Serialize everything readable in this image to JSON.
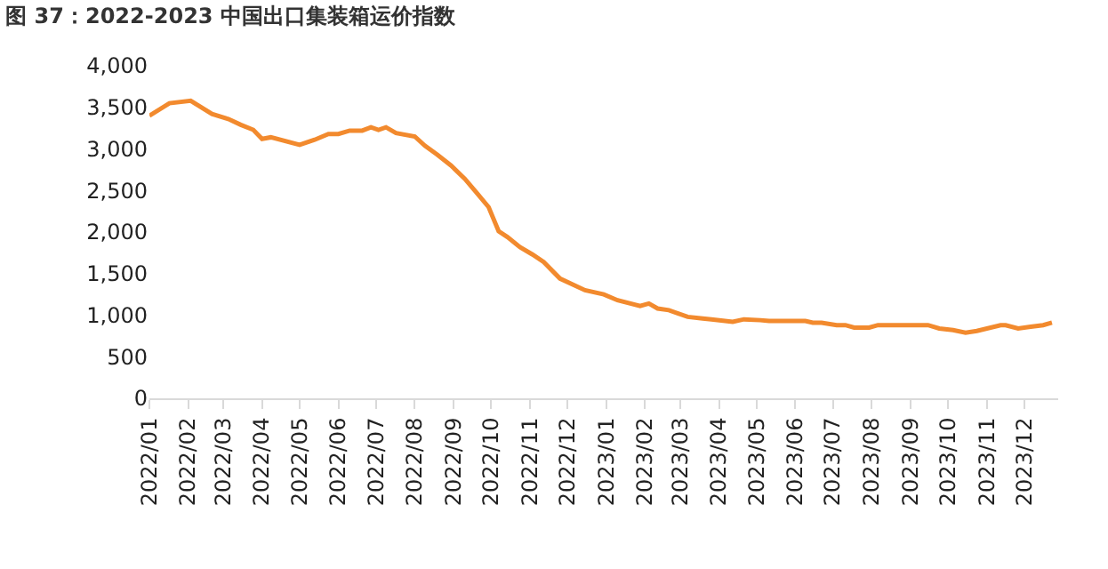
{
  "chart_data": {
    "type": "line",
    "title": "图 37：2022-2023 中国出口集装箱运价指数",
    "x": [
      "2022-01-01",
      "2022-01-17",
      "2022-02-03",
      "2022-02-20",
      "2022-03-05",
      "2022-03-15",
      "2022-03-25",
      "2022-04-01",
      "2022-04-08",
      "2022-05-01",
      "2022-05-13",
      "2022-05-24",
      "2022-06-01",
      "2022-06-10",
      "2022-06-20",
      "2022-06-27",
      "2022-07-03",
      "2022-07-09",
      "2022-07-17",
      "2022-08-01",
      "2022-08-09",
      "2022-08-19",
      "2022-08-30",
      "2022-09-10",
      "2022-09-19",
      "2022-09-29",
      "2022-10-07",
      "2022-10-14",
      "2022-10-24",
      "2022-11-03",
      "2022-11-12",
      "2022-11-25",
      "2022-12-15",
      "2022-12-30",
      "2023-01-10",
      "2023-01-28",
      "2023-02-04",
      "2023-02-11",
      "2023-02-20",
      "2023-03-07",
      "2023-03-19",
      "2023-03-26",
      "2023-04-12",
      "2023-04-21",
      "2023-05-04",
      "2023-05-11",
      "2023-06-09",
      "2023-06-15",
      "2023-06-22",
      "2023-07-04",
      "2023-07-11",
      "2023-07-18",
      "2023-07-30",
      "2023-08-06",
      "2023-09-15",
      "2023-09-24",
      "2023-10-05",
      "2023-10-15",
      "2023-10-24",
      "2023-11-12",
      "2023-11-16",
      "2023-11-26",
      "2023-12-06",
      "2023-12-16",
      "2023-12-23"
    ],
    "series": [
      {
        "color": "#f28a2e",
        "values": [
          3400,
          3550,
          3580,
          3420,
          3360,
          3290,
          3230,
          3120,
          3140,
          3050,
          3110,
          3180,
          3180,
          3220,
          3220,
          3260,
          3230,
          3260,
          3190,
          3150,
          3040,
          2930,
          2800,
          2640,
          2480,
          2300,
          2010,
          1940,
          1820,
          1730,
          1640,
          1440,
          1300,
          1250,
          1180,
          1110,
          1140,
          1080,
          1060,
          980,
          960,
          950,
          920,
          950,
          940,
          930,
          930,
          910,
          910,
          880,
          880,
          850,
          850,
          880,
          880,
          840,
          820,
          790,
          810,
          880,
          880,
          840,
          860,
          880,
          910
        ]
      }
    ],
    "xlim": [
      "2022-01-01",
      "2023-12-28"
    ],
    "xticks": [
      {
        "value": "2022-01-01",
        "label": "2022/01"
      },
      {
        "value": "2022-02-01",
        "label": "2022/02"
      },
      {
        "value": "2022-03-01",
        "label": "2022/03"
      },
      {
        "value": "2022-04-01",
        "label": "2022/04"
      },
      {
        "value": "2022-05-01",
        "label": "2022/05"
      },
      {
        "value": "2022-06-01",
        "label": "2022/06"
      },
      {
        "value": "2022-07-01",
        "label": "2022/07"
      },
      {
        "value": "2022-08-01",
        "label": "2022/08"
      },
      {
        "value": "2022-09-01",
        "label": "2022/09"
      },
      {
        "value": "2022-10-01",
        "label": "2022/10"
      },
      {
        "value": "2022-11-01",
        "label": "2022/11"
      },
      {
        "value": "2022-12-01",
        "label": "2022/12"
      },
      {
        "value": "2023-01-01",
        "label": "2023/01"
      },
      {
        "value": "2023-02-01",
        "label": "2023/02"
      },
      {
        "value": "2023-03-01",
        "label": "2023/03"
      },
      {
        "value": "2023-04-01",
        "label": "2023/04"
      },
      {
        "value": "2023-05-01",
        "label": "2023/05"
      },
      {
        "value": "2023-06-01",
        "label": "2023/06"
      },
      {
        "value": "2023-07-01",
        "label": "2023/07"
      },
      {
        "value": "2023-08-01",
        "label": "2023/08"
      },
      {
        "value": "2023-09-01",
        "label": "2023/09"
      },
      {
        "value": "2023-10-01",
        "label": "2023/10"
      },
      {
        "value": "2023-11-01",
        "label": "2023/11"
      },
      {
        "value": "2023-12-01",
        "label": "2023/12"
      }
    ],
    "ylim": [
      0,
      4000
    ],
    "yticks": [
      {
        "value": 0,
        "label": "0"
      },
      {
        "value": 500,
        "label": "500"
      },
      {
        "value": 1000,
        "label": "1,000"
      },
      {
        "value": 1500,
        "label": "1,500"
      },
      {
        "value": 2000,
        "label": "2,000"
      },
      {
        "value": 2500,
        "label": "2,500"
      },
      {
        "value": 3000,
        "label": "3,000"
      },
      {
        "value": 3500,
        "label": "3,500"
      },
      {
        "value": 4000,
        "label": "4,000"
      }
    ],
    "grid": false,
    "marker": "none",
    "line_style": "solid"
  }
}
